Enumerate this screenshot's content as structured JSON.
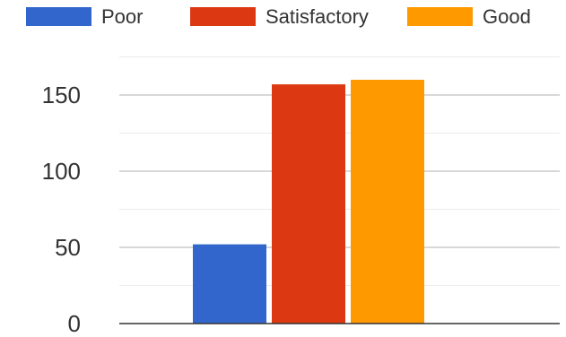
{
  "chart_data": {
    "type": "bar",
    "categories": [
      ""
    ],
    "series": [
      {
        "name": "Poor",
        "values": [
          52
        ],
        "color": "#3366cc"
      },
      {
        "name": "Satisfactory",
        "values": [
          157
        ],
        "color": "#dc3912"
      },
      {
        "name": "Good",
        "values": [
          160
        ],
        "color": "#ff9900"
      }
    ],
    "title": "",
    "xlabel": "",
    "ylabel": "",
    "ylim": [
      0,
      175
    ],
    "yticks": [
      "0",
      "50",
      "100",
      "150"
    ],
    "grid": true,
    "legend": "top"
  }
}
